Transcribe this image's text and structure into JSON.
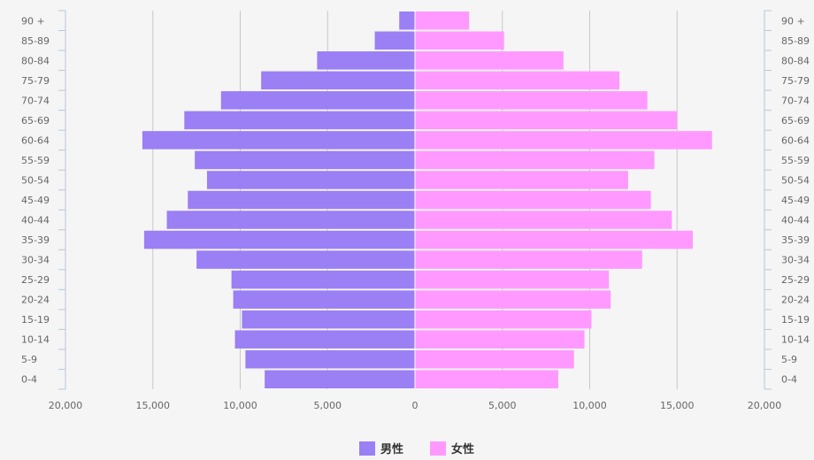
{
  "chart_data": {
    "type": "bar",
    "orientation": "horizontal-diverging",
    "categories": [
      "0-4",
      "5-9",
      "10-14",
      "15-19",
      "20-24",
      "25-29",
      "30-34",
      "35-39",
      "40-44",
      "45-49",
      "50-54",
      "55-59",
      "60-64",
      "65-69",
      "70-74",
      "75-79",
      "80-84",
      "85-89",
      "90 +"
    ],
    "series": [
      {
        "name": "男性",
        "color": "#9b7ff5",
        "side": "left",
        "values": [
          8600,
          9700,
          10300,
          9900,
          10400,
          10500,
          12500,
          15500,
          14200,
          13000,
          11900,
          12600,
          15600,
          13200,
          11100,
          8800,
          5600,
          2300,
          900
        ]
      },
      {
        "name": "女性",
        "color": "#ff99ff",
        "side": "right",
        "values": [
          8200,
          9100,
          9700,
          10100,
          11200,
          11100,
          13000,
          15900,
          14700,
          13500,
          12200,
          13700,
          17000,
          15000,
          13300,
          11700,
          8500,
          5100,
          3100
        ]
      }
    ],
    "xlim": [
      -20000,
      20000
    ],
    "xticks": [
      "20,000",
      "15,000",
      "10,000",
      "5,000",
      "0",
      "5,000",
      "10,000",
      "15,000",
      "20,000"
    ],
    "grid": true,
    "legend_position": "bottom-center",
    "legend": [
      {
        "label": "男性",
        "color": "#9b7ff5"
      },
      {
        "label": "女性",
        "color": "#ff99ff"
      }
    ]
  }
}
